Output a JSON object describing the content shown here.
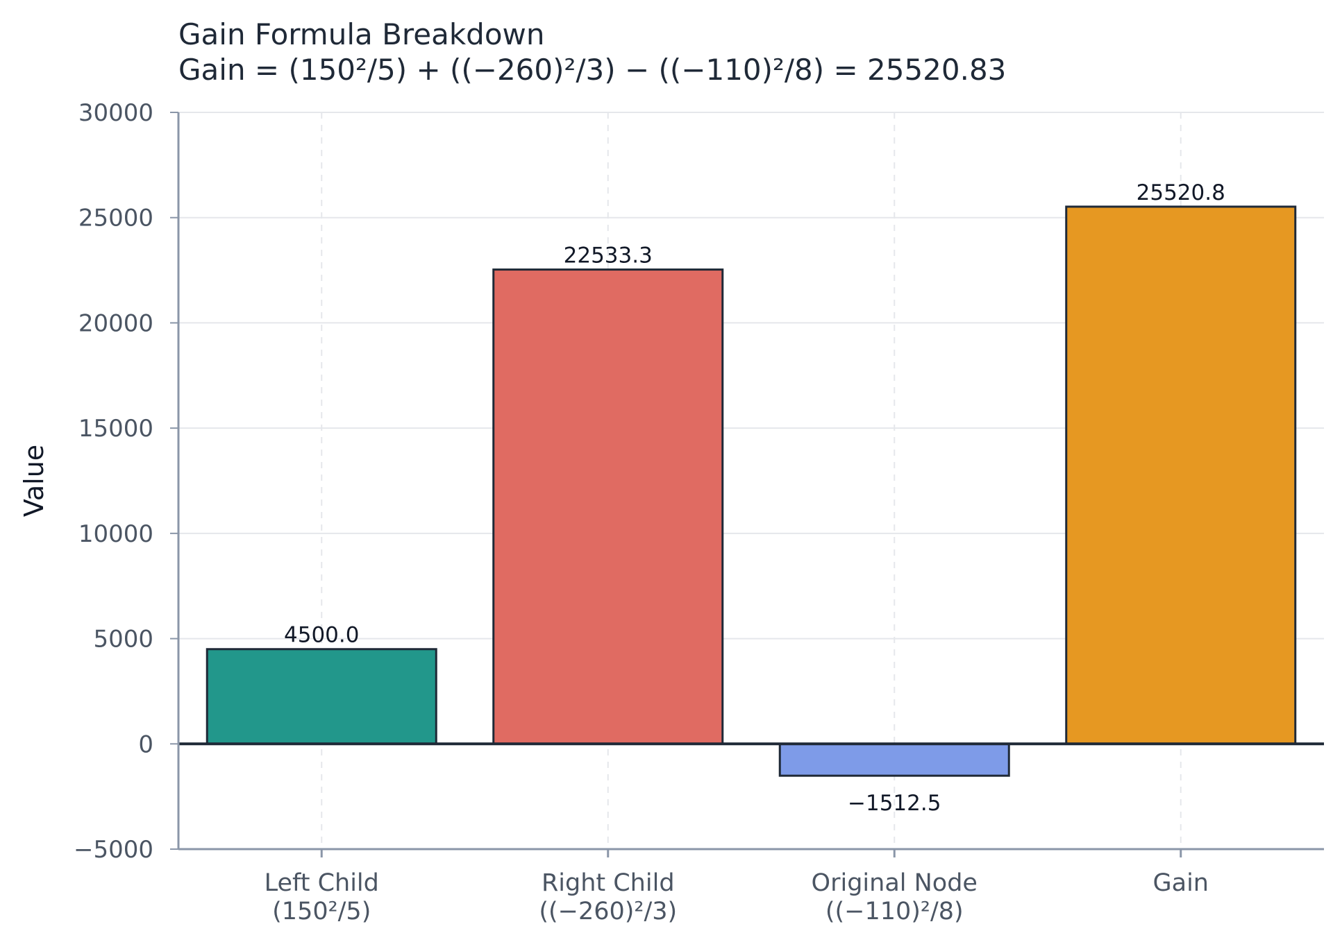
{
  "chart_data": {
    "type": "bar",
    "title": "Gain Formula Breakdown",
    "subtitle": "Gain = (150²/5) + ((−260)²/3) − ((−110)²/8) = 25520.83",
    "xlabel": "",
    "ylabel": "Value",
    "ylim": [
      -5000,
      30000
    ],
    "yticks": [
      -5000,
      0,
      5000,
      10000,
      15000,
      20000,
      25000,
      30000
    ],
    "grid": true,
    "categories": [
      [
        "Left Child",
        "(150²/5)"
      ],
      [
        "Right Child",
        "((−260)²/3)"
      ],
      [
        "Original Node",
        "((−110)²/8)"
      ],
      [
        "Gain"
      ]
    ],
    "values": [
      4500.0,
      22533.3,
      -1512.5,
      25520.8
    ],
    "value_labels": [
      "4500.0",
      "22533.3",
      "−1512.5",
      "25520.8"
    ],
    "tick_labels": [
      "−5000",
      "0",
      "5000",
      "10000",
      "15000",
      "20000",
      "25000",
      "30000"
    ],
    "colors": [
      "#22978b",
      "#e06b62",
      "#7e9be8",
      "#e69822"
    ]
  }
}
